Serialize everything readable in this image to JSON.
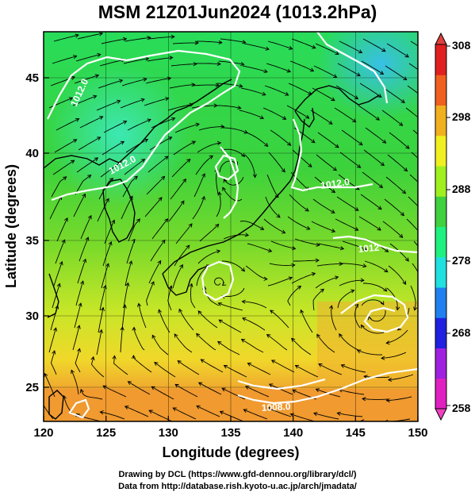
{
  "title": "MSM 21Z01Jun2024 (1013.2hPa)",
  "xaxis": {
    "label": "Longitude (degrees)",
    "ticks": [
      "120",
      "125",
      "130",
      "135",
      "140",
      "145",
      "150"
    ],
    "range": [
      120,
      150
    ]
  },
  "yaxis": {
    "label": "Latitude  (degrees)",
    "ticks": [
      "25",
      "30",
      "35",
      "40",
      "45"
    ],
    "range": [
      22.4,
      47.6
    ]
  },
  "colorbar": {
    "ticks": [
      "308",
      "298",
      "288",
      "278",
      "268",
      "258"
    ],
    "range": [
      258,
      308
    ],
    "colors": [
      "#e020c0",
      "#a020e0",
      "#2020e0",
      "#2080f0",
      "#20e0e0",
      "#20f080",
      "#40d040",
      "#a0f020",
      "#f0f020",
      "#f0b020",
      "#f06020",
      "#e02020"
    ]
  },
  "contours": [
    {
      "label": "1012.0"
    },
    {
      "label": "1012.0"
    },
    {
      "label": "1012.0"
    },
    {
      "label": "1012"
    },
    {
      "label": "1008.0"
    }
  ],
  "credits": [
    "Drawing by DCL (https://www.gfd-dennou.org/library/dcl/)",
    "Data from http://database.rish.kyoto-u.ac.jp/arch/jmadata/"
  ]
}
